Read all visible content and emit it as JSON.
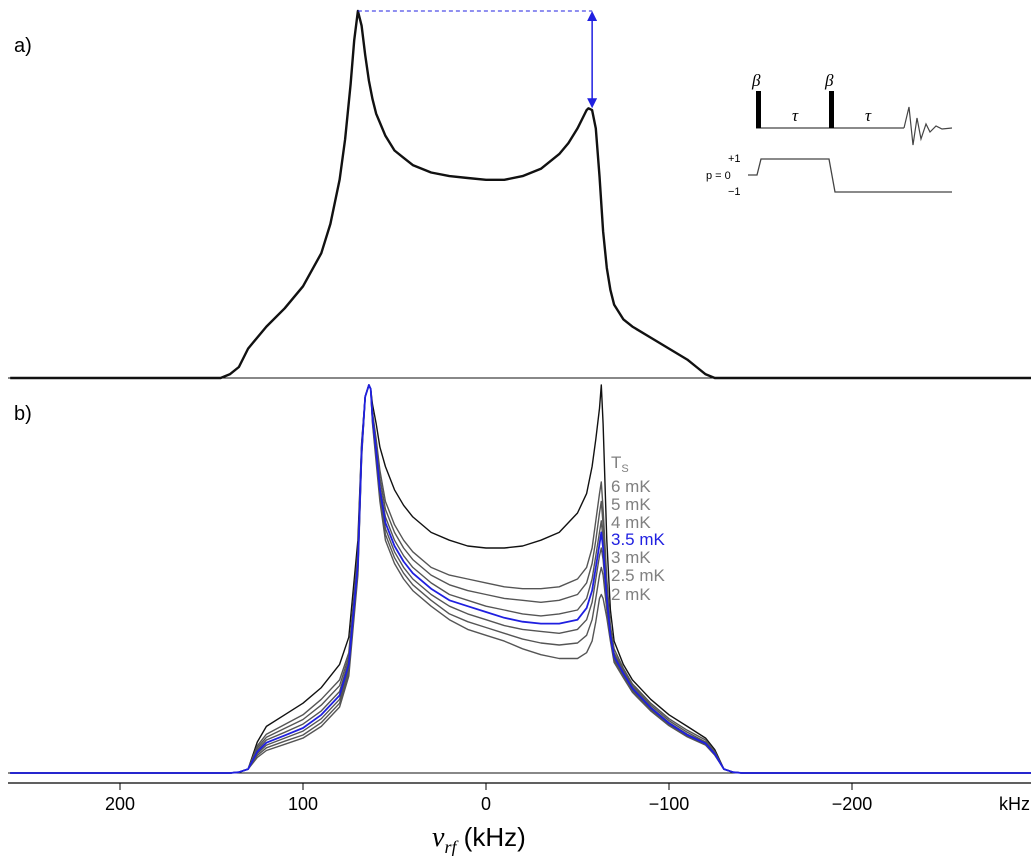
{
  "panel_a_label": "a)",
  "panel_b_label": "b)",
  "pulse_sequence": {
    "pulse_labels": [
      "β",
      "β"
    ],
    "delay_labels": [
      "τ",
      "τ"
    ],
    "coherence_levels": [
      "+1",
      "p = 0",
      "−1"
    ]
  },
  "colors": {
    "spectrum": "#111111",
    "highlight": "#1f1fe0",
    "curves": "#555555",
    "labels_gray": "#808080"
  },
  "chart_data": [
    {
      "type": "line",
      "panel": "a",
      "xlabel": "",
      "xlim": [
        260,
        -300
      ],
      "x_reversed": true,
      "series": [
        {
          "x": [
            260,
            200,
            150,
            145,
            140,
            135,
            130,
            120,
            110,
            100,
            90,
            85,
            80,
            77,
            74,
            72,
            70,
            68,
            66,
            64,
            62,
            60,
            55,
            50,
            45,
            40,
            30,
            20,
            10,
            0,
            -10,
            -20,
            -30,
            -40,
            -45,
            -50,
            -53,
            -55,
            -56,
            -58,
            -60,
            -62,
            -64,
            -66,
            -68,
            -70,
            -75,
            -80,
            -90,
            -100,
            -110,
            -115,
            -120,
            -125,
            -130,
            -135,
            -140,
            -150,
            -200,
            -250,
            -300
          ],
          "y": [
            0,
            0,
            0,
            0,
            0.01,
            0.03,
            0.08,
            0.14,
            0.19,
            0.25,
            0.34,
            0.42,
            0.54,
            0.65,
            0.8,
            0.92,
            1.0,
            0.96,
            0.88,
            0.81,
            0.76,
            0.72,
            0.66,
            0.62,
            0.6,
            0.58,
            0.56,
            0.55,
            0.545,
            0.54,
            0.54,
            0.55,
            0.57,
            0.61,
            0.64,
            0.68,
            0.71,
            0.73,
            0.735,
            0.73,
            0.68,
            0.55,
            0.4,
            0.3,
            0.24,
            0.2,
            0.16,
            0.14,
            0.11,
            0.08,
            0.05,
            0.03,
            0.01,
            0.0,
            0,
            0,
            0,
            0,
            0,
            0,
            0
          ]
        }
      ],
      "annotation": {
        "type": "double-arrow",
        "from_peak_x": 70,
        "at_x": -58,
        "y_top": 1.0,
        "y_bottom": 0.735
      }
    },
    {
      "type": "line",
      "panel": "b",
      "xlabel": "ν_rf (kHz)",
      "xlim": [
        260,
        -300
      ],
      "x_reversed": true,
      "xticks": [
        200,
        100,
        0,
        -100,
        -200
      ],
      "xtick_labels": [
        "200",
        "100",
        "0",
        "−100",
        "−200"
      ],
      "xunit_label": "kHz",
      "x": [
        260,
        200,
        150,
        140,
        135,
        130,
        125,
        120,
        110,
        100,
        90,
        80,
        75,
        70,
        68,
        66,
        64,
        63,
        62,
        60,
        58,
        55,
        50,
        45,
        40,
        30,
        20,
        10,
        0,
        -10,
        -20,
        -30,
        -40,
        -50,
        -55,
        -58,
        -60,
        -62,
        -63,
        -64,
        -66,
        -68,
        -70,
        -75,
        -80,
        -90,
        -100,
        -110,
        -120,
        -125,
        -130,
        -135,
        -140,
        -150,
        -200,
        -250,
        -300
      ],
      "series": [
        {
          "name": "T_S",
          "highlight": false,
          "y": [
            0,
            0,
            0,
            0,
            0.002,
            0.01,
            0.08,
            0.12,
            0.15,
            0.18,
            0.22,
            0.28,
            0.35,
            0.6,
            0.85,
            0.97,
            1.0,
            0.99,
            0.95,
            0.9,
            0.84,
            0.79,
            0.73,
            0.69,
            0.66,
            0.62,
            0.6,
            0.585,
            0.58,
            0.58,
            0.585,
            0.6,
            0.62,
            0.67,
            0.72,
            0.79,
            0.86,
            0.94,
            1.0,
            0.9,
            0.6,
            0.42,
            0.34,
            0.28,
            0.24,
            0.19,
            0.15,
            0.12,
            0.09,
            0.06,
            0.01,
            0.002,
            0,
            0,
            0,
            0,
            0
          ]
        },
        {
          "name": "6 mK",
          "highlight": false,
          "y": [
            0,
            0,
            0,
            0,
            0.002,
            0.01,
            0.07,
            0.1,
            0.125,
            0.15,
            0.19,
            0.24,
            0.31,
            0.57,
            0.84,
            0.97,
            1.0,
            0.99,
            0.93,
            0.86,
            0.78,
            0.7,
            0.64,
            0.6,
            0.57,
            0.53,
            0.51,
            0.5,
            0.49,
            0.48,
            0.475,
            0.475,
            0.48,
            0.5,
            0.53,
            0.58,
            0.65,
            0.72,
            0.75,
            0.68,
            0.5,
            0.38,
            0.32,
            0.27,
            0.23,
            0.18,
            0.14,
            0.11,
            0.085,
            0.055,
            0.01,
            0.002,
            0,
            0,
            0,
            0,
            0
          ]
        },
        {
          "name": "5 mK",
          "highlight": false,
          "y": [
            0,
            0,
            0,
            0,
            0.002,
            0.01,
            0.065,
            0.092,
            0.115,
            0.138,
            0.175,
            0.225,
            0.3,
            0.56,
            0.84,
            0.97,
            1.0,
            0.99,
            0.925,
            0.85,
            0.76,
            0.68,
            0.62,
            0.58,
            0.55,
            0.51,
            0.485,
            0.47,
            0.46,
            0.45,
            0.445,
            0.44,
            0.445,
            0.46,
            0.49,
            0.54,
            0.6,
            0.67,
            0.7,
            0.64,
            0.48,
            0.37,
            0.31,
            0.265,
            0.225,
            0.175,
            0.135,
            0.105,
            0.08,
            0.052,
            0.01,
            0.002,
            0,
            0,
            0,
            0,
            0
          ]
        },
        {
          "name": "4 mK",
          "highlight": false,
          "y": [
            0,
            0,
            0,
            0,
            0.002,
            0.01,
            0.06,
            0.085,
            0.105,
            0.126,
            0.16,
            0.21,
            0.29,
            0.55,
            0.83,
            0.97,
            1.0,
            0.99,
            0.92,
            0.84,
            0.74,
            0.66,
            0.6,
            0.56,
            0.53,
            0.49,
            0.46,
            0.445,
            0.43,
            0.42,
            0.41,
            0.405,
            0.41,
            0.42,
            0.45,
            0.5,
            0.56,
            0.62,
            0.65,
            0.6,
            0.46,
            0.36,
            0.305,
            0.26,
            0.22,
            0.17,
            0.13,
            0.1,
            0.078,
            0.05,
            0.01,
            0.002,
            0,
            0,
            0,
            0,
            0
          ]
        },
        {
          "name": "3.5 mK",
          "highlight": true,
          "y": [
            0,
            0,
            0,
            0,
            0.002,
            0.01,
            0.055,
            0.078,
            0.097,
            0.116,
            0.15,
            0.2,
            0.28,
            0.54,
            0.83,
            0.97,
            1.0,
            0.99,
            0.915,
            0.83,
            0.73,
            0.645,
            0.585,
            0.545,
            0.515,
            0.475,
            0.445,
            0.43,
            0.415,
            0.4,
            0.39,
            0.385,
            0.385,
            0.395,
            0.425,
            0.47,
            0.53,
            0.59,
            0.62,
            0.58,
            0.45,
            0.355,
            0.3,
            0.257,
            0.218,
            0.168,
            0.128,
            0.098,
            0.076,
            0.049,
            0.01,
            0.002,
            0,
            0,
            0,
            0,
            0
          ]
        },
        {
          "name": "3 mK",
          "highlight": false,
          "y": [
            0,
            0,
            0,
            0,
            0.002,
            0.01,
            0.05,
            0.072,
            0.09,
            0.108,
            0.14,
            0.19,
            0.27,
            0.53,
            0.82,
            0.97,
            1.0,
            0.99,
            0.91,
            0.82,
            0.72,
            0.63,
            0.57,
            0.53,
            0.5,
            0.46,
            0.43,
            0.41,
            0.395,
            0.38,
            0.37,
            0.365,
            0.36,
            0.37,
            0.395,
            0.44,
            0.5,
            0.56,
            0.58,
            0.55,
            0.44,
            0.35,
            0.295,
            0.254,
            0.215,
            0.165,
            0.126,
            0.096,
            0.074,
            0.048,
            0.01,
            0.002,
            0,
            0,
            0,
            0,
            0
          ]
        },
        {
          "name": "2.5 mK",
          "highlight": false,
          "y": [
            0,
            0,
            0,
            0,
            0.002,
            0.01,
            0.045,
            0.065,
            0.082,
            0.098,
            0.13,
            0.18,
            0.26,
            0.52,
            0.82,
            0.97,
            1.0,
            0.99,
            0.905,
            0.81,
            0.71,
            0.615,
            0.555,
            0.515,
            0.485,
            0.445,
            0.41,
            0.39,
            0.375,
            0.36,
            0.345,
            0.335,
            0.33,
            0.335,
            0.355,
            0.395,
            0.45,
            0.51,
            0.53,
            0.51,
            0.42,
            0.345,
            0.29,
            0.25,
            0.212,
            0.162,
            0.124,
            0.095,
            0.073,
            0.047,
            0.01,
            0.002,
            0,
            0,
            0,
            0,
            0
          ]
        },
        {
          "name": "2 mK",
          "highlight": false,
          "y": [
            0,
            0,
            0,
            0,
            0.002,
            0.01,
            0.04,
            0.058,
            0.074,
            0.09,
            0.12,
            0.17,
            0.25,
            0.51,
            0.81,
            0.97,
            1.0,
            0.99,
            0.9,
            0.8,
            0.7,
            0.6,
            0.54,
            0.5,
            0.47,
            0.43,
            0.395,
            0.37,
            0.355,
            0.34,
            0.32,
            0.305,
            0.295,
            0.295,
            0.31,
            0.34,
            0.39,
            0.45,
            0.46,
            0.45,
            0.4,
            0.34,
            0.285,
            0.246,
            0.208,
            0.16,
            0.122,
            0.093,
            0.072,
            0.046,
            0.01,
            0.002,
            0,
            0,
            0,
            0,
            0
          ]
        }
      ]
    }
  ]
}
